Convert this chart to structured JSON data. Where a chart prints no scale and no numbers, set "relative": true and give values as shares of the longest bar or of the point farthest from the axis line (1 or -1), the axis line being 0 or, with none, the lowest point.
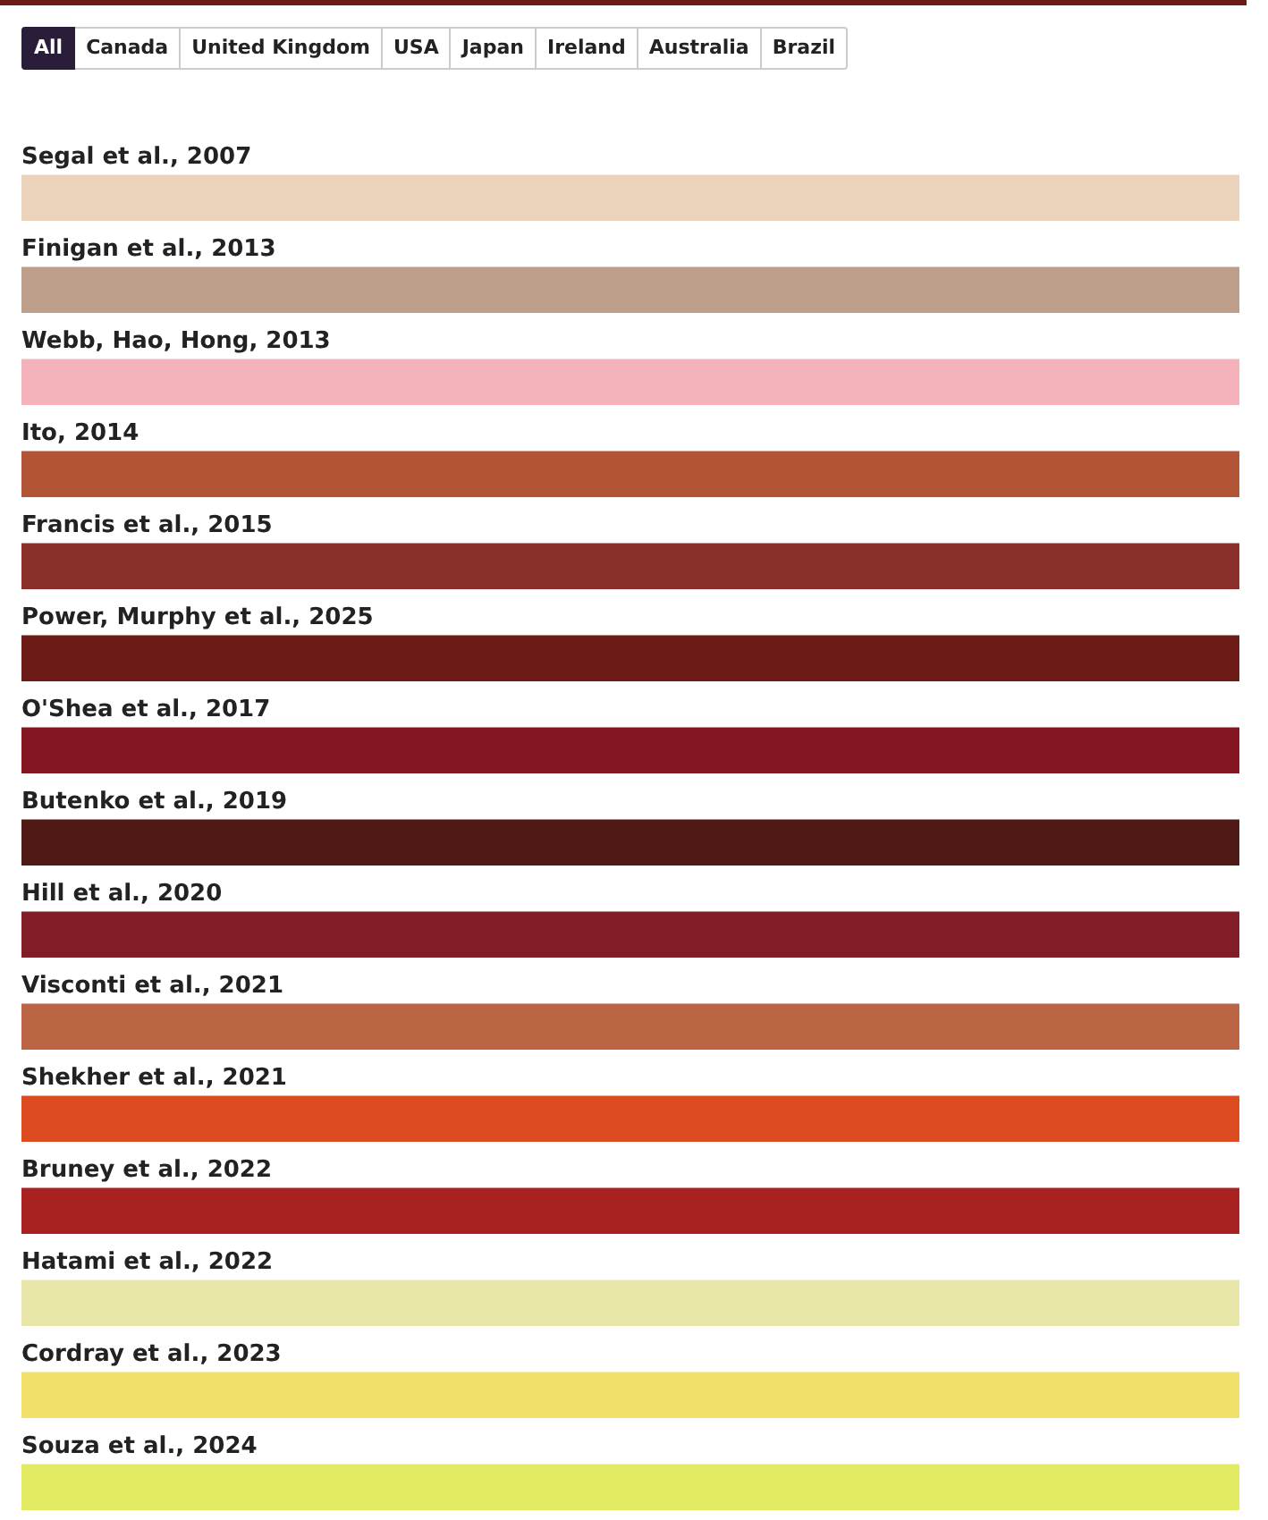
{
  "chart_data": {
    "type": "bar",
    "orientation": "horizontal",
    "relative": true,
    "annotations": [
      "All",
      "Canada",
      "United Kingdom",
      "USA",
      "Japan",
      "Ireland",
      "Australia",
      "Brazil"
    ],
    "categories": [
      "Segal et al., 2007",
      "Finigan et al., 2013",
      "Webb, Hao, Hong, 2013",
      "Ito, 2014",
      "Francis et al., 2015",
      "Power, Murphy et al., 2025",
      "O'Shea et al., 2017",
      "Butenko et al., 2019",
      "Hill et al., 2020",
      "Visconti et al., 2021",
      "Shekher et al., 2021",
      "Bruney et al., 2022",
      "Hatami et al., 2022",
      "Cordray et al., 2023",
      "Souza et al., 2024"
    ],
    "values": [
      1,
      1,
      1,
      1,
      1,
      1,
      1,
      1,
      1,
      1,
      1,
      1,
      1,
      1,
      1
    ],
    "colors": [
      "#ebd3bb",
      "#bd9e8b",
      "#f4b2bb",
      "#b15536",
      "#8a2f29",
      "#6b1a16",
      "#831620",
      "#4f1915",
      "#811d26",
      "#bb6544",
      "#dd4c20",
      "#a82222",
      "#e9e6aa",
      "#f1e06a",
      "#e3eb62"
    ]
  }
}
